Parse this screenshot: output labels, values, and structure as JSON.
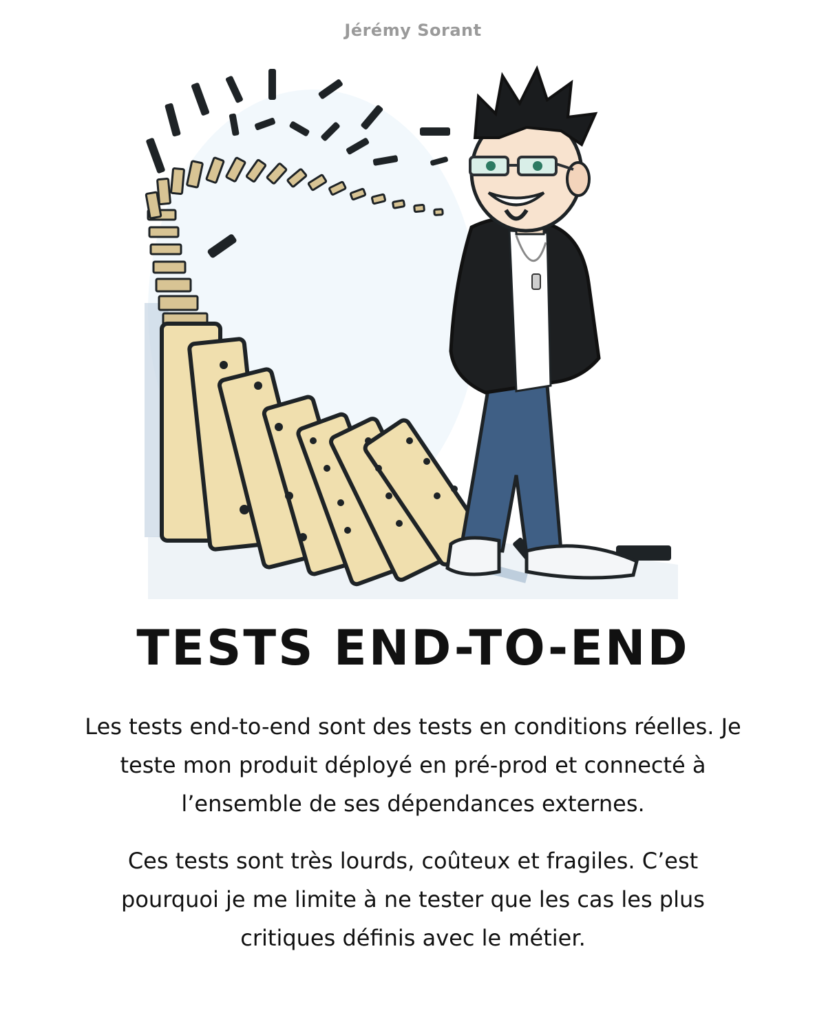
{
  "header": {
    "author": "Jérémy Sorant"
  },
  "illustration": {
    "icon": "developer-with-falling-dominoes-illustration"
  },
  "main": {
    "title": "TESTS END-TO-END",
    "paragraphs": [
      "Les tests end-to-end sont des tests en conditions réelles. Je teste mon produit déployé en pré-prod et connecté à l’ensemble de ses dépendances externes.",
      "Ces tests sont très lourds, coûteux et fragiles. C’est pourquoi je me limite à ne tester que les cas les plus critiques définis avec le métier."
    ]
  },
  "colors": {
    "domino_face": "#f0dfae",
    "domino_edge": "#1e2326",
    "jeans": "#3f5f85",
    "jacket": "#1d1f21",
    "ground_shadow": "#9fb6cc"
  }
}
